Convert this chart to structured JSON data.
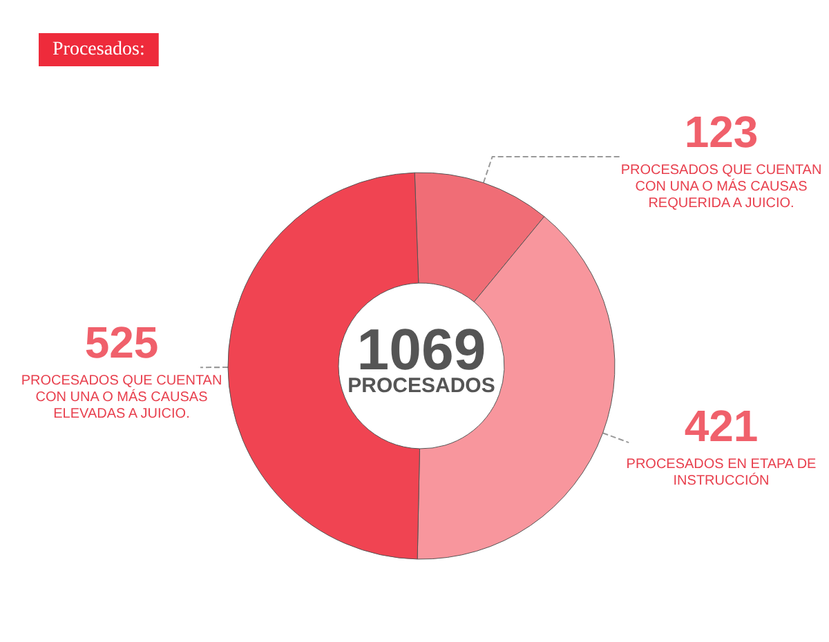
{
  "chart_data": {
    "type": "donut",
    "title": "Procesados:",
    "categories": [
      "PROCESADOS QUE CUENTAN CON UNA O MÁS CAUSAS REQUERIDA A JUICIO.",
      "PROCESADOS EN ETAPA DE INSTRUCCIÓN",
      "PROCESADOS QUE CUENTAN CON UNA O MÁS CAUSAS ELEVADAS A JUICIO."
    ],
    "values": [
      123,
      421,
      525
    ],
    "colors": [
      "#f06d76",
      "#f8969d",
      "#f04452"
    ],
    "data_labels": true,
    "annotations": [
      "1069",
      "PROCESADOS"
    ],
    "legend": false
  }
}
